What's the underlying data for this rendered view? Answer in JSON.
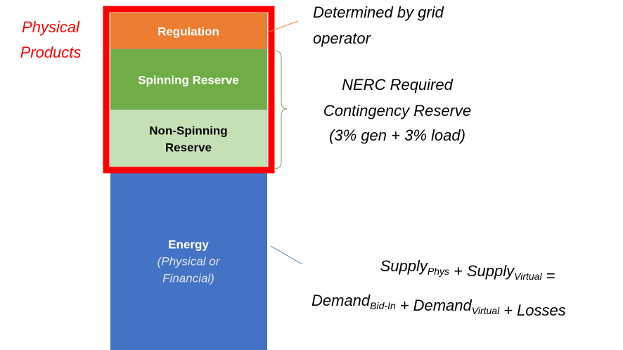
{
  "side_label": {
    "lines": [
      "Physical",
      "Products"
    ]
  },
  "segments": [
    {
      "lines": [
        "Regulation"
      ]
    },
    {
      "lines": [
        "Spinning Reserve"
      ]
    },
    {
      "lines": [
        "Non-Spinning",
        "Reserve"
      ]
    },
    {
      "lines": [
        "Energy"
      ],
      "sub_lines": [
        "(Physical or",
        "Financial)"
      ]
    }
  ],
  "annotations": [
    {
      "lines": [
        "Determined by grid",
        "operator"
      ]
    },
    {
      "lines": [
        "NERC Required",
        "Contingency Reserve",
        "(3% gen + 3% load)"
      ]
    }
  ],
  "equations": [
    {
      "parts": [
        {
          "text": "Supply",
          "sub": "Phys"
        },
        {
          "text": "+"
        },
        {
          "text": "Supply",
          "sub": "Virtual"
        },
        {
          "text": "="
        }
      ]
    },
    {
      "parts": [
        {
          "text": "Demand",
          "sub": "Bid-In"
        },
        {
          "text": "+"
        },
        {
          "text": "Demand",
          "sub": "Virtual"
        },
        {
          "text": "+"
        },
        {
          "text": "Losses"
        }
      ]
    }
  ]
}
